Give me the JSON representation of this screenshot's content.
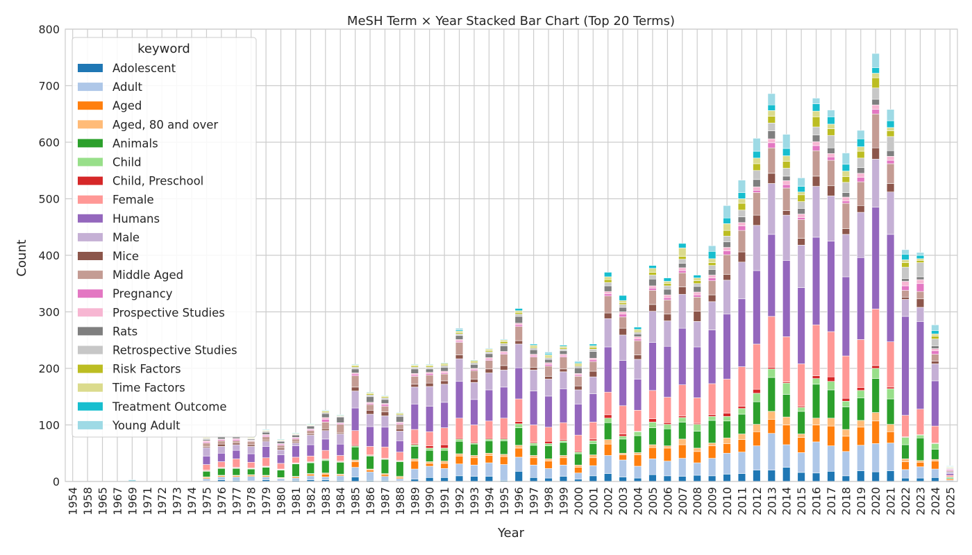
{
  "chart_data": {
    "type": "bar",
    "stacked": true,
    "title": "MeSH Term × Year Stacked Bar Chart (Top 20 Terms)",
    "xlabel": "Year",
    "ylabel": "Count",
    "ylim": [
      0,
      800
    ],
    "yticks": [
      "0",
      "100",
      "200",
      "300",
      "400",
      "500",
      "600",
      "700",
      "800"
    ],
    "grid": true,
    "legend_title": "keyword",
    "legend_position": "upper left",
    "categories": [
      "1954",
      "1958",
      "1965",
      "1967",
      "1969",
      "1971",
      "1972",
      "1973",
      "1974",
      "1975",
      "1976",
      "1977",
      "1978",
      "1979",
      "1980",
      "1981",
      "1982",
      "1983",
      "1984",
      "1985",
      "1986",
      "1987",
      "1988",
      "1989",
      "1990",
      "1991",
      "1992",
      "1993",
      "1994",
      "1995",
      "1996",
      "1997",
      "1998",
      "1999",
      "2000",
      "2001",
      "2002",
      "2003",
      "2004",
      "2005",
      "2006",
      "2007",
      "2008",
      "2009",
      "2010",
      "2011",
      "2012",
      "2013",
      "2014",
      "2015",
      "2016",
      "2017",
      "2018",
      "2019",
      "2020",
      "2021",
      "2022",
      "2023",
      "2024",
      "2025"
    ],
    "series": [
      {
        "name": "Adolescent",
        "color": "#1f77b4",
        "values": [
          0,
          0,
          0,
          0,
          0,
          0,
          0,
          0,
          0,
          1,
          3,
          2,
          1,
          3,
          1,
          2,
          3,
          3,
          2,
          8,
          2,
          2,
          1,
          4,
          7,
          7,
          10,
          9,
          9,
          2,
          18,
          7,
          6,
          9,
          4,
          10,
          14,
          8,
          6,
          12,
          10,
          9,
          11,
          10,
          13,
          14,
          20,
          20,
          25,
          16,
          15,
          18,
          10,
          19,
          17,
          19,
          6,
          6,
          7,
          0
        ]
      },
      {
        "name": "Adult",
        "color": "#aec7e8",
        "values": [
          0,
          0,
          0,
          0,
          0,
          0,
          0,
          0,
          0,
          4,
          5,
          6,
          8,
          5,
          4,
          4,
          7,
          5,
          8,
          17,
          15,
          7,
          4,
          18,
          20,
          16,
          21,
          20,
          24,
          28,
          25,
          22,
          17,
          20,
          11,
          18,
          32,
          30,
          21,
          28,
          26,
          32,
          22,
          31,
          37,
          38,
          43,
          65,
          40,
          35,
          55,
          45,
          43,
          45,
          50,
          49,
          15,
          20,
          15,
          2
        ]
      },
      {
        "name": "Aged",
        "color": "#ff7f0e",
        "values": [
          0,
          0,
          0,
          0,
          0,
          0,
          0,
          0,
          0,
          2,
          2,
          2,
          2,
          2,
          1,
          2,
          3,
          5,
          2,
          10,
          3,
          3,
          2,
          14,
          5,
          9,
          14,
          13,
          13,
          14,
          16,
          13,
          13,
          13,
          10,
          14,
          20,
          9,
          20,
          20,
          23,
          24,
          20,
          22,
          17,
          22,
          25,
          25,
          35,
          27,
          30,
          35,
          27,
          32,
          40,
          20,
          14,
          8,
          14,
          2
        ]
      },
      {
        "name": "Aged, 80 and over",
        "color": "#ffbb78",
        "values": [
          0,
          0,
          0,
          0,
          0,
          0,
          0,
          0,
          0,
          1,
          1,
          1,
          1,
          1,
          1,
          1,
          1,
          2,
          1,
          3,
          2,
          2,
          2,
          4,
          3,
          4,
          4,
          4,
          4,
          4,
          5,
          4,
          4,
          4,
          4,
          5,
          8,
          3,
          4,
          5,
          4,
          10,
          6,
          5,
          10,
          10,
          13,
          14,
          14,
          6,
          12,
          14,
          12,
          12,
          15,
          13,
          5,
          3,
          3,
          1
        ]
      },
      {
        "name": "Animals",
        "color": "#2ca02c",
        "values": [
          0,
          0,
          0,
          0,
          0,
          0,
          0,
          0,
          0,
          10,
          12,
          12,
          10,
          14,
          13,
          22,
          19,
          22,
          21,
          23,
          23,
          25,
          26,
          22,
          20,
          19,
          22,
          20,
          22,
          24,
          31,
          18,
          23,
          23,
          20,
          20,
          30,
          25,
          30,
          30,
          30,
          30,
          30,
          40,
          30,
          35,
          40,
          60,
          40,
          40,
          60,
          50,
          40,
          40,
          60,
          45,
          25,
          40,
          18,
          2
        ]
      },
      {
        "name": "Child",
        "color": "#98df8a",
        "values": [
          0,
          0,
          0,
          0,
          0,
          0,
          0,
          0,
          0,
          1,
          1,
          1,
          1,
          1,
          1,
          1,
          1,
          2,
          1,
          2,
          1,
          1,
          1,
          3,
          4,
          4,
          4,
          2,
          3,
          3,
          7,
          4,
          4,
          3,
          3,
          5,
          8,
          5,
          7,
          10,
          8,
          8,
          12,
          7,
          8,
          10,
          15,
          15,
          20,
          7,
          10,
          15,
          10,
          13,
          18,
          18,
          13,
          5,
          10,
          1
        ]
      },
      {
        "name": "Child, Preschool",
        "color": "#d62728",
        "values": [
          0,
          0,
          0,
          0,
          0,
          0,
          0,
          0,
          0,
          1,
          1,
          1,
          1,
          1,
          1,
          1,
          1,
          1,
          1,
          2,
          1,
          1,
          1,
          2,
          4,
          6,
          2,
          2,
          2,
          2,
          4,
          2,
          4,
          2,
          2,
          3,
          6,
          4,
          1,
          6,
          3,
          3,
          2,
          3,
          6,
          4,
          7,
          3,
          2,
          2,
          5,
          8,
          5,
          5,
          5,
          3,
          1,
          1,
          1,
          0
        ]
      },
      {
        "name": "Female",
        "color": "#ff9896",
        "values": [
          0,
          0,
          0,
          0,
          0,
          0,
          0,
          0,
          0,
          10,
          10,
          15,
          10,
          15,
          10,
          10,
          10,
          15,
          10,
          25,
          15,
          20,
          15,
          25,
          25,
          30,
          35,
          30,
          30,
          35,
          40,
          30,
          25,
          30,
          28,
          30,
          40,
          50,
          37,
          50,
          45,
          55,
          45,
          55,
          60,
          70,
          80,
          90,
          80,
          75,
          90,
          80,
          75,
          85,
          100,
          80,
          38,
          45,
          30,
          3
        ]
      },
      {
        "name": "Humans",
        "color": "#9467bd",
        "values": [
          0,
          0,
          0,
          0,
          0,
          0,
          0,
          0,
          0,
          15,
          15,
          15,
          15,
          20,
          15,
          20,
          20,
          20,
          20,
          40,
          35,
          35,
          20,
          45,
          45,
          45,
          65,
          45,
          55,
          55,
          55,
          60,
          55,
          60,
          55,
          50,
          80,
          80,
          55,
          85,
          90,
          100,
          90,
          95,
          115,
          120,
          130,
          145,
          135,
          135,
          155,
          160,
          140,
          145,
          180,
          190,
          175,
          155,
          80,
          3
        ]
      },
      {
        "name": "Male",
        "color": "#c5b0d5",
        "values": [
          0,
          0,
          0,
          0,
          0,
          0,
          0,
          0,
          0,
          15,
          12,
          10,
          13,
          9,
          9,
          5,
          17,
          15,
          18,
          30,
          22,
          20,
          17,
          30,
          35,
          32,
          40,
          30,
          30,
          30,
          42,
          37,
          30,
          30,
          25,
          30,
          50,
          45,
          35,
          55,
          45,
          60,
          45,
          50,
          60,
          65,
          80,
          90,
          80,
          75,
          90,
          80,
          75,
          80,
          85,
          75,
          30,
          25,
          30,
          3
        ]
      },
      {
        "name": "Mice",
        "color": "#8c564b",
        "values": [
          0,
          0,
          0,
          0,
          0,
          0,
          0,
          0,
          0,
          2,
          4,
          3,
          3,
          2,
          3,
          2,
          2,
          3,
          2,
          7,
          7,
          7,
          4,
          5,
          6,
          6,
          7,
          6,
          7,
          8,
          6,
          5,
          5,
          5,
          7,
          10,
          10,
          12,
          8,
          12,
          12,
          13,
          18,
          12,
          10,
          18,
          18,
          18,
          8,
          12,
          18,
          18,
          10,
          12,
          20,
          15,
          4,
          15,
          5,
          0
        ]
      },
      {
        "name": "Middle Aged",
        "color": "#c49c94",
        "values": [
          0,
          0,
          0,
          0,
          0,
          0,
          0,
          0,
          0,
          6,
          6,
          4,
          6,
          6,
          5,
          5,
          6,
          12,
          15,
          20,
          10,
          10,
          8,
          14,
          14,
          12,
          22,
          15,
          15,
          20,
          25,
          18,
          18,
          21,
          17,
          17,
          30,
          20,
          25,
          25,
          25,
          25,
          25,
          25,
          35,
          38,
          40,
          45,
          40,
          33,
          45,
          45,
          45,
          42,
          60,
          35,
          12,
          13,
          12,
          2
        ]
      },
      {
        "name": "Pregnancy",
        "color": "#e377c2",
        "values": [
          0,
          0,
          0,
          0,
          0,
          0,
          0,
          0,
          0,
          2,
          2,
          2,
          1,
          2,
          2,
          2,
          2,
          5,
          2,
          3,
          2,
          3,
          2,
          2,
          3,
          2,
          2,
          2,
          2,
          2,
          3,
          2,
          3,
          2,
          2,
          3,
          4,
          5,
          3,
          4,
          4,
          4,
          4,
          5,
          7,
          8,
          4,
          9,
          6,
          4,
          9,
          6,
          4,
          8,
          8,
          6,
          8,
          14,
          6,
          2
        ]
      },
      {
        "name": "Prospective Studies",
        "color": "#f7b6d2",
        "values": [
          0,
          0,
          0,
          0,
          0,
          0,
          0,
          0,
          0,
          2,
          1,
          2,
          1,
          2,
          1,
          1,
          1,
          3,
          1,
          2,
          2,
          2,
          2,
          3,
          2,
          3,
          3,
          2,
          3,
          3,
          3,
          3,
          3,
          3,
          3,
          3,
          4,
          4,
          4,
          4,
          5,
          5,
          5,
          5,
          6,
          6,
          6,
          7,
          7,
          6,
          7,
          6,
          7,
          7,
          8,
          7,
          8,
          7,
          4,
          1
        ]
      },
      {
        "name": "Rats",
        "color": "#7f7f7f",
        "values": [
          0,
          0,
          0,
          0,
          0,
          0,
          0,
          0,
          0,
          2,
          5,
          3,
          2,
          4,
          4,
          4,
          5,
          7,
          10,
          7,
          10,
          7,
          10,
          8,
          6,
          7,
          7,
          7,
          7,
          10,
          12,
          8,
          6,
          6,
          10,
          12,
          10,
          8,
          5,
          12,
          10,
          8,
          10,
          10,
          10,
          10,
          13,
          14,
          8,
          10,
          12,
          10,
          8,
          10,
          10,
          10,
          5,
          5,
          5,
          1
        ]
      },
      {
        "name": "Retrospective Studies",
        "color": "#c7c7c7",
        "values": [
          0,
          0,
          0,
          0,
          0,
          0,
          0,
          0,
          0,
          2,
          2,
          2,
          1,
          2,
          1,
          1,
          1,
          2,
          1,
          3,
          3,
          3,
          3,
          3,
          3,
          3,
          3,
          3,
          3,
          4,
          4,
          3,
          3,
          3,
          3,
          4,
          6,
          5,
          3,
          7,
          6,
          7,
          5,
          7,
          10,
          12,
          16,
          14,
          14,
          12,
          14,
          22,
          18,
          17,
          20,
          25,
          20,
          25,
          12,
          1
        ]
      },
      {
        "name": "Risk Factors",
        "color": "#bcbd22",
        "values": [
          0,
          0,
          0,
          0,
          0,
          0,
          0,
          0,
          0,
          1,
          1,
          1,
          1,
          1,
          1,
          1,
          1,
          2,
          1,
          2,
          2,
          2,
          2,
          2,
          2,
          2,
          2,
          2,
          2,
          3,
          3,
          2,
          2,
          2,
          2,
          3,
          5,
          3,
          2,
          5,
          4,
          5,
          5,
          5,
          10,
          12,
          12,
          12,
          12,
          12,
          18,
          12,
          10,
          12,
          18,
          10,
          8,
          4,
          5,
          1
        ]
      },
      {
        "name": "Time Factors",
        "color": "#dbdb8d",
        "values": [
          0,
          0,
          0,
          0,
          0,
          0,
          0,
          0,
          0,
          1,
          1,
          1,
          1,
          1,
          1,
          1,
          1,
          1,
          1,
          2,
          2,
          1,
          1,
          2,
          2,
          2,
          3,
          2,
          3,
          3,
          3,
          3,
          3,
          3,
          3,
          3,
          5,
          4,
          3,
          7,
          4,
          15,
          5,
          7,
          12,
          8,
          10,
          10,
          10,
          5,
          10,
          8,
          10,
          8,
          8,
          6,
          5,
          3,
          4,
          1
        ]
      },
      {
        "name": "Treatment Outcome",
        "color": "#17becf",
        "values": [
          0,
          0,
          0,
          0,
          0,
          0,
          0,
          0,
          0,
          1,
          1,
          1,
          1,
          1,
          1,
          1,
          1,
          1,
          1,
          1,
          1,
          1,
          1,
          1,
          1,
          1,
          2,
          1,
          1,
          1,
          4,
          2,
          2,
          2,
          2,
          3,
          8,
          9,
          4,
          5,
          6,
          8,
          5,
          13,
          10,
          11,
          12,
          10,
          13,
          10,
          13,
          13,
          12,
          14,
          10,
          12,
          10,
          6,
          6,
          1
        ]
      },
      {
        "name": "Young Adult",
        "color": "#9edae5",
        "values": [
          0,
          0,
          0,
          0,
          3,
          0,
          0,
          0,
          0,
          0,
          0,
          0,
          0,
          0,
          0,
          0,
          0,
          0,
          0,
          0,
          0,
          0,
          0,
          0,
          0,
          0,
          3,
          0,
          0,
          0,
          0,
          0,
          3,
          0,
          2,
          0,
          0,
          0,
          0,
          0,
          0,
          0,
          0,
          10,
          22,
          22,
          23,
          20,
          25,
          15,
          10,
          12,
          20,
          15,
          25,
          20,
          8,
          5,
          10,
          1
        ]
      }
    ]
  }
}
